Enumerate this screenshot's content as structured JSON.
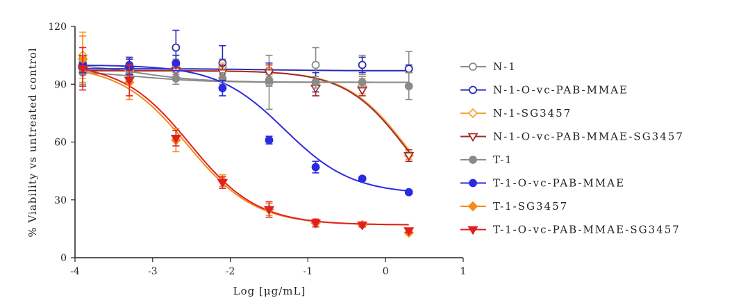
{
  "chart_data": {
    "type": "scatter",
    "title": "",
    "xlabel": "Log [μg/mL]",
    "ylabel": "% Viability vs untreated control",
    "xlim": [
      -4,
      1
    ],
    "ylim": [
      0,
      120
    ],
    "xticks": [
      "-4",
      "-3",
      "-2",
      "-1",
      "0",
      "1"
    ],
    "yticks": [
      "0",
      "30",
      "60",
      "90",
      "120"
    ],
    "grid": false,
    "legend_position": "right",
    "x": [
      -3.9,
      -3.3,
      -2.7,
      -2.1,
      -1.5,
      -0.9,
      -0.3,
      0.3
    ],
    "series": [
      {
        "name": "N-1",
        "color": "#8a8a8a",
        "marker": "circle-open",
        "values": [
          101,
          99,
          100,
          99,
          91,
          100,
          100,
          98
        ],
        "errors": [
          4,
          4,
          5,
          4,
          14,
          9,
          5,
          9
        ],
        "fit": {
          "top": 101,
          "bottom": 91,
          "logec50": -3.2,
          "hill": 1.0
        }
      },
      {
        "name": "N-1-O-vc-PAB-MMAE",
        "color": "#2a2ab8",
        "marker": "circle-open",
        "values": [
          100,
          100,
          109,
          101,
          97,
          91,
          100,
          98
        ],
        "errors": [
          4,
          4,
          9,
          9,
          4,
          5,
          4,
          2
        ],
        "fit": {
          "top": 98,
          "bottom": 97,
          "logec50": -1.5,
          "hill": 1.0
        }
      },
      {
        "name": "N-1-SG3457",
        "color": "#f2a33a",
        "marker": "diamond-open",
        "values": [
          105,
          97,
          98,
          97,
          97,
          89,
          89,
          53
        ],
        "errors": [
          12,
          6,
          5,
          4,
          3,
          5,
          4,
          2
        ],
        "fit": {
          "top": 97,
          "bottom": 15,
          "logec50": 0.3,
          "hill": 1.1
        }
      },
      {
        "name": "N-1-O-vc-PAB-MMAE-SG3457",
        "color": "#a52a2a",
        "marker": "triangle-down-open",
        "values": [
          97,
          97,
          97,
          96,
          96,
          88,
          87,
          53
        ],
        "errors": [
          8,
          4,
          4,
          4,
          4,
          4,
          3,
          3
        ],
        "fit": {
          "top": 97,
          "bottom": 15,
          "logec50": 0.28,
          "hill": 1.1
        }
      },
      {
        "name": "T-1",
        "color": "#8a8a8a",
        "marker": "circle-filled",
        "values": [
          96,
          95,
          93,
          93,
          92,
          91,
          91,
          89
        ],
        "errors": [
          6,
          3,
          3,
          3,
          3,
          3,
          3,
          7
        ],
        "fit": {
          "top": 97,
          "bottom": 91,
          "logec50": -3.2,
          "hill": 1.0
        }
      },
      {
        "name": "T-1-O-vc-PAB-MMAE",
        "color": "#2a2ae0",
        "marker": "circle-filled",
        "values": [
          100,
          99,
          101,
          88,
          61,
          47,
          41,
          34
        ],
        "errors": [
          4,
          4,
          4,
          4,
          2,
          3,
          1,
          1
        ],
        "fit": {
          "top": 100,
          "bottom": 33,
          "logec50": -1.3,
          "hill": 1.0
        }
      },
      {
        "name": "T-1-SG3457",
        "color": "#f58a1a",
        "marker": "diamond-filled",
        "values": [
          103,
          91,
          61,
          40,
          25,
          18,
          17,
          13
        ],
        "errors": [
          12,
          9,
          6,
          3,
          3,
          2,
          1,
          1
        ],
        "fit": {
          "top": 100,
          "bottom": 17,
          "logec50": -2.55,
          "hill": 1.0
        }
      },
      {
        "name": "T-1-O-vc-PAB-MMAE-SG3457",
        "color": "#e02020",
        "marker": "triangle-down-filled",
        "values": [
          98,
          92,
          62,
          39,
          25,
          18,
          17,
          14
        ],
        "errors": [
          11,
          8,
          4,
          3,
          4,
          2,
          1,
          1
        ],
        "fit": {
          "top": 101,
          "bottom": 17,
          "logec50": -2.52,
          "hill": 1.0
        }
      }
    ]
  }
}
